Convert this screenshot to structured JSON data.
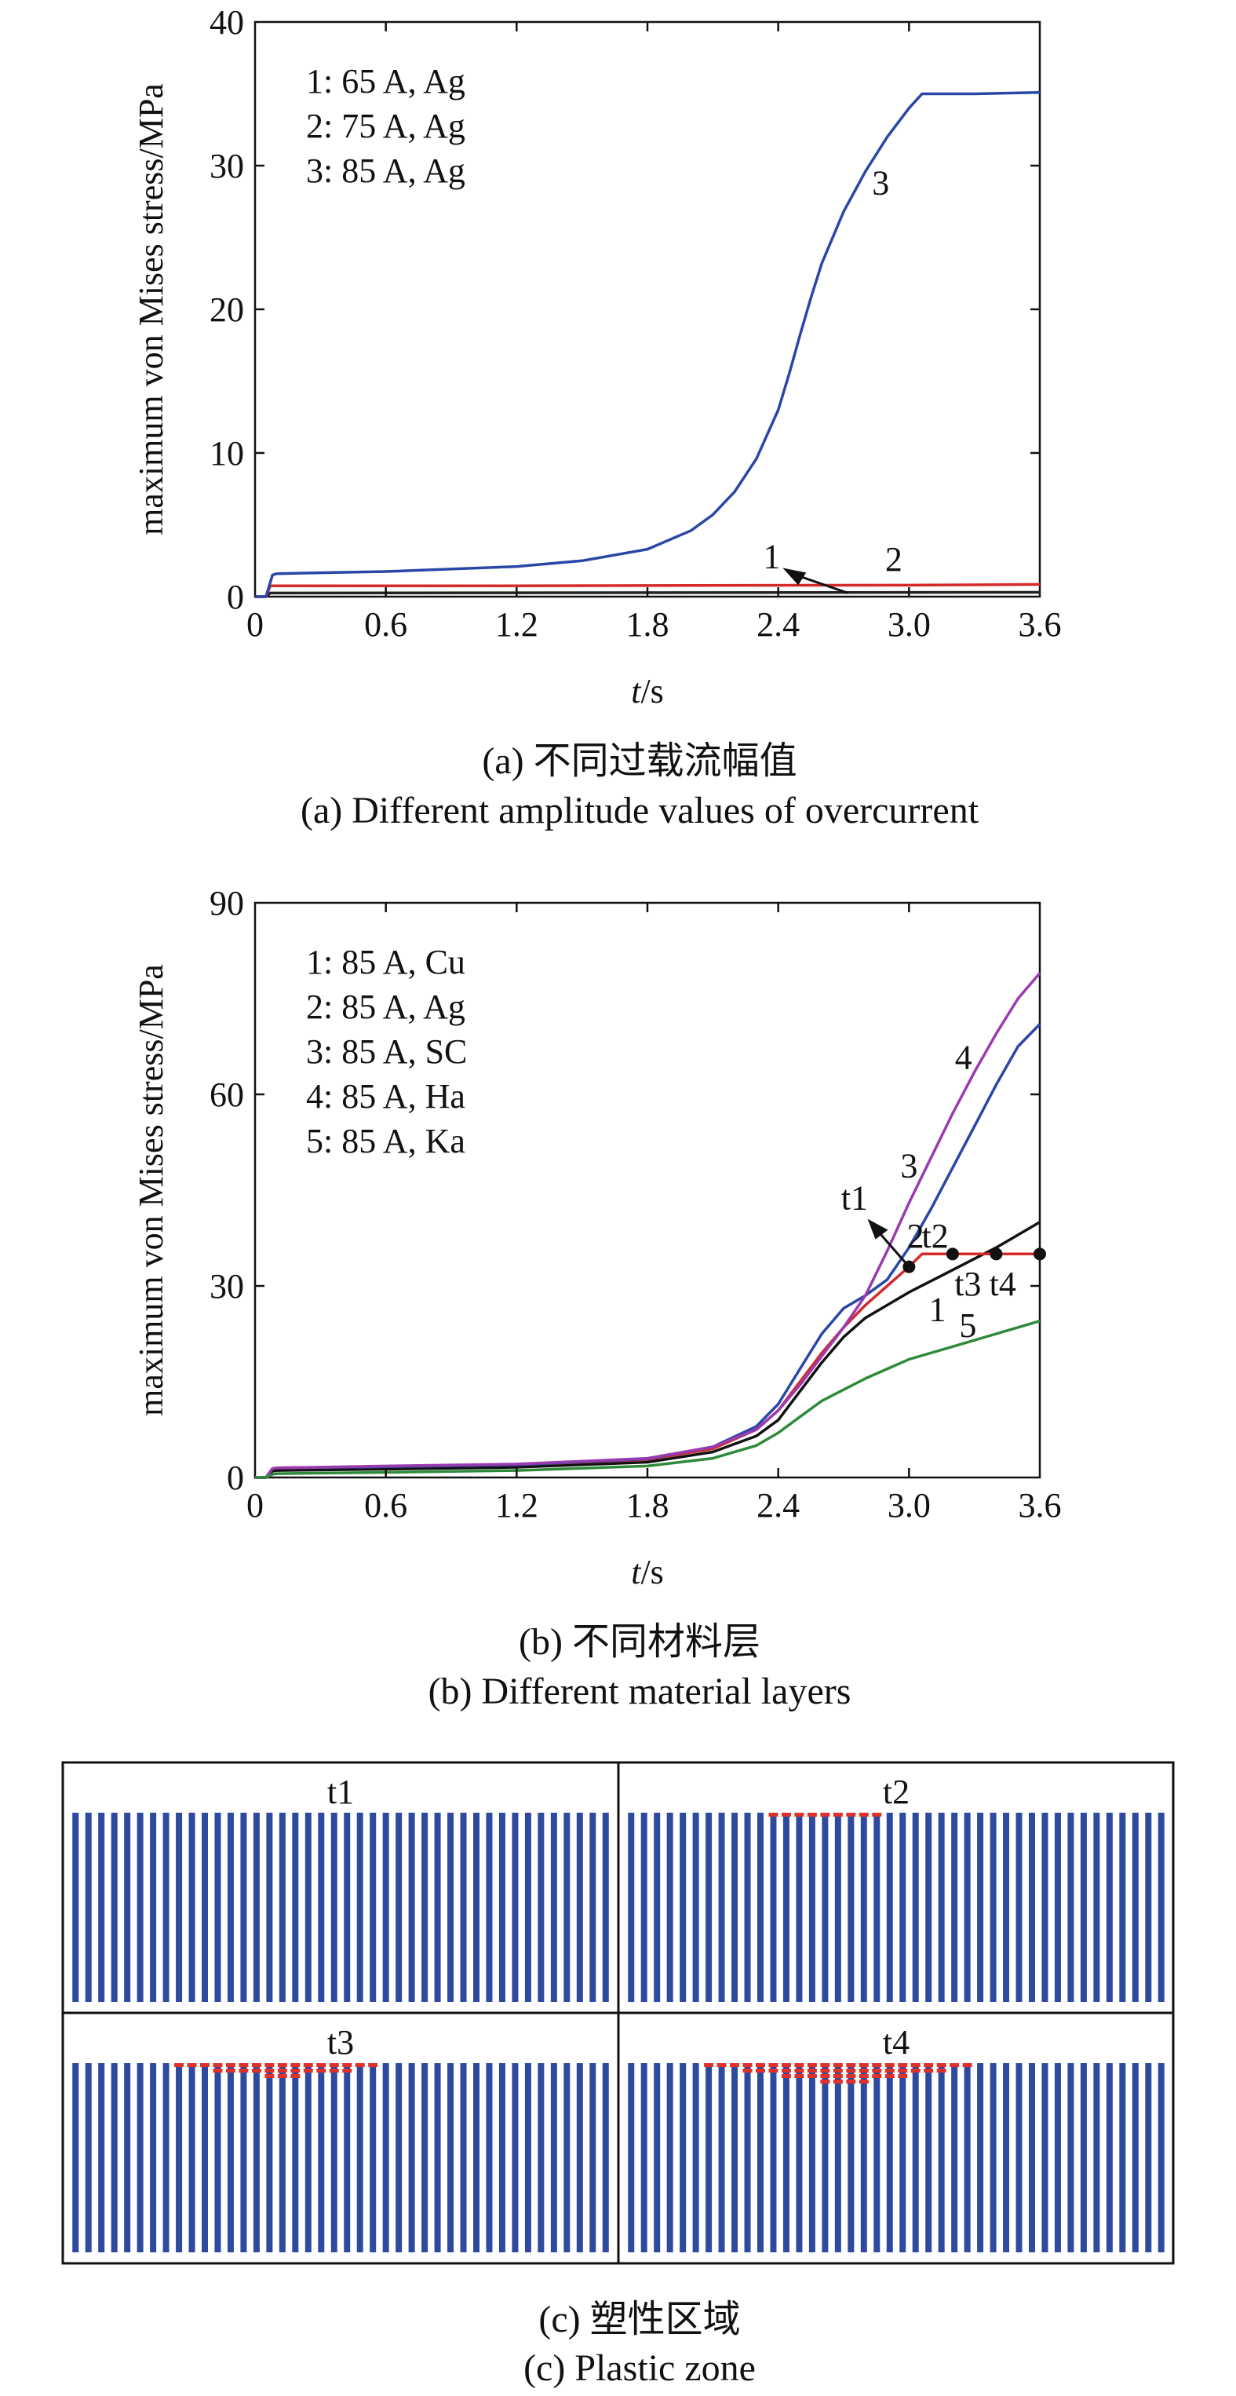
{
  "chart_data": [
    {
      "type": "line",
      "panel": "a",
      "caption_cn": "(a) 不同过载流幅值",
      "caption_en": "(a) Different amplitude values of overcurrent",
      "xlabel_italic": "t",
      "xlabel_unit": "/s",
      "ylabel": "maximum von Mises stress/MPa",
      "xlim": [
        0,
        3.6
      ],
      "ylim": [
        0,
        40
      ],
      "xticks": [
        "0",
        "0.6",
        "1.2",
        "1.8",
        "2.4",
        "3.0",
        "3.6"
      ],
      "yticks": [
        "0",
        "10",
        "20",
        "30",
        "40"
      ],
      "legend": [
        "1: 65 A, Ag",
        "2: 75 A, Ag",
        "3: 85 A, Ag"
      ],
      "legend_position": "top-left",
      "series": [
        {
          "label": "1",
          "color": "#222222",
          "x": [
            0,
            0.05,
            0.07,
            0.1,
            3.6
          ],
          "y": [
            0,
            0,
            0.25,
            0.25,
            0.3
          ]
        },
        {
          "label": "2",
          "color": "#d42a2a",
          "x": [
            0,
            0.05,
            0.07,
            0.1,
            1.0,
            2.0,
            3.0,
            3.6
          ],
          "y": [
            0,
            0,
            0.75,
            0.75,
            0.75,
            0.78,
            0.8,
            0.85
          ]
        },
        {
          "label": "3",
          "color": "#2a47a8",
          "x": [
            0,
            0.05,
            0.08,
            0.1,
            0.6,
            1.2,
            1.5,
            1.8,
            2.0,
            2.1,
            2.2,
            2.3,
            2.4,
            2.45,
            2.5,
            2.55,
            2.6,
            2.7,
            2.8,
            2.9,
            3.0,
            3.06,
            3.1,
            3.3,
            3.6
          ],
          "y": [
            0,
            0,
            1.5,
            1.6,
            1.75,
            2.1,
            2.5,
            3.3,
            4.6,
            5.7,
            7.3,
            9.6,
            13.0,
            15.5,
            18.2,
            20.8,
            23.2,
            26.8,
            29.6,
            32.0,
            34.0,
            35.0,
            35.0,
            35.0,
            35.1
          ]
        }
      ],
      "annotations": [
        {
          "text": "3",
          "x": 2.87,
          "y": 28.0
        },
        {
          "text": "1",
          "x": 2.37,
          "y": 2.0
        },
        {
          "text": "2",
          "x": 2.93,
          "y": 1.8
        }
      ]
    },
    {
      "type": "line",
      "panel": "b",
      "caption_cn": "(b) 不同材料层",
      "caption_en": "(b) Different material layers",
      "xlabel_italic": "t",
      "xlabel_unit": "/s",
      "ylabel": "maximum von Mises stress/MPa",
      "xlim": [
        0,
        3.6
      ],
      "ylim": [
        0,
        90
      ],
      "xticks": [
        "0",
        "0.6",
        "1.2",
        "1.8",
        "2.4",
        "3.0",
        "3.6"
      ],
      "yticks": [
        "0",
        "30",
        "60",
        "90"
      ],
      "legend": [
        "1: 85 A, Cu",
        "2: 85 A, Ag",
        "3: 85 A, SC",
        "4: 85 A, Ha",
        "5: 85 A, Ka"
      ],
      "legend_position": "top-left",
      "series": [
        {
          "label": "1",
          "color": "#111111",
          "x": [
            0,
            0.05,
            0.08,
            0.1,
            0.6,
            1.2,
            1.8,
            2.1,
            2.3,
            2.4,
            2.5,
            2.6,
            2.7,
            2.8,
            3.0,
            3.2,
            3.4,
            3.6
          ],
          "y": [
            0,
            0,
            1.0,
            1.1,
            1.3,
            1.6,
            2.4,
            4.0,
            6.5,
            9.0,
            13.5,
            18.0,
            22.0,
            25.0,
            29.0,
            32.5,
            36.0,
            40.0
          ]
        },
        {
          "label": "2",
          "color": "#d42a2a",
          "x": [
            0,
            0.05,
            0.08,
            0.1,
            0.6,
            1.2,
            1.8,
            2.1,
            2.3,
            2.4,
            2.5,
            2.6,
            2.7,
            2.8,
            2.9,
            3.0,
            3.06,
            3.1,
            3.6
          ],
          "y": [
            0,
            0,
            1.4,
            1.5,
            1.7,
            2.0,
            2.8,
            4.5,
            7.5,
            10.5,
            15.0,
            19.5,
            23.5,
            27.0,
            30.0,
            33.0,
            35.0,
            35.0,
            35.0
          ]
        },
        {
          "label": "3",
          "color": "#2a47a8",
          "x": [
            0,
            0.05,
            0.08,
            0.1,
            0.6,
            1.2,
            1.8,
            2.1,
            2.3,
            2.4,
            2.5,
            2.6,
            2.7,
            2.8,
            2.9,
            3.0,
            3.1,
            3.2,
            3.3,
            3.4,
            3.5,
            3.6
          ],
          "y": [
            0,
            0,
            1.4,
            1.5,
            1.7,
            2.0,
            2.9,
            4.8,
            8.0,
            11.5,
            17.0,
            22.5,
            26.5,
            28.5,
            31.0,
            36.0,
            42.0,
            48.5,
            55.0,
            61.5,
            67.5,
            71.0
          ]
        },
        {
          "label": "4",
          "color": "#9b3bb0",
          "x": [
            0,
            0.05,
            0.08,
            0.1,
            0.6,
            1.2,
            1.8,
            2.1,
            2.3,
            2.4,
            2.5,
            2.6,
            2.7,
            2.8,
            2.9,
            3.0,
            3.1,
            3.2,
            3.3,
            3.4,
            3.5,
            3.6
          ],
          "y": [
            0,
            0,
            1.4,
            1.5,
            1.8,
            2.1,
            3.0,
            4.8,
            7.5,
            10.5,
            14.5,
            19.0,
            23.5,
            28.5,
            35.5,
            43.0,
            50.0,
            57.0,
            63.5,
            69.5,
            75.0,
            79.0
          ]
        },
        {
          "label": "5",
          "color": "#2e8a3a",
          "x": [
            0,
            0.05,
            0.08,
            0.1,
            0.6,
            1.2,
            1.8,
            2.1,
            2.3,
            2.4,
            2.5,
            2.6,
            2.8,
            3.0,
            3.2,
            3.4,
            3.6
          ],
          "y": [
            0,
            0,
            0.5,
            0.6,
            0.8,
            1.1,
            1.8,
            3.0,
            5.0,
            7.0,
            9.5,
            12.0,
            15.5,
            18.5,
            20.5,
            22.5,
            24.5
          ]
        }
      ],
      "markers": [
        {
          "label": "t1",
          "x": 3.0,
          "y": 33.0
        },
        {
          "label": "t2",
          "x": 3.2,
          "y": 35.0
        },
        {
          "label": "t3",
          "x": 3.4,
          "y": 35.0
        },
        {
          "label": "t4",
          "x": 3.6,
          "y": 35.0
        }
      ],
      "annotations": [
        {
          "text": "4",
          "x": 3.25,
          "y": 64.0
        },
        {
          "text": "3",
          "x": 3.0,
          "y": 47.0
        },
        {
          "text": "t1",
          "x": 2.75,
          "y": 42.0
        },
        {
          "text": "2",
          "x": 3.03,
          "y": 36.0
        },
        {
          "text": "t2",
          "x": 3.12,
          "y": 36.0
        },
        {
          "text": "t3",
          "x": 3.27,
          "y": 28.5
        },
        {
          "text": "t4",
          "x": 3.43,
          "y": 28.5
        },
        {
          "text": "1",
          "x": 3.13,
          "y": 24.5
        },
        {
          "text": "5",
          "x": 3.27,
          "y": 22.0
        }
      ]
    }
  ],
  "plastic_zone": {
    "caption_cn": "(c) 塑性区域",
    "caption_en": "(c) Plastic zone",
    "panels": [
      {
        "label": "t1",
        "red_bars": 0,
        "red_depth": 0
      },
      {
        "label": "t2",
        "red_bars": 9,
        "red_depth": 1
      },
      {
        "label": "t3",
        "red_bars": 16,
        "red_depth": 3
      },
      {
        "label": "t4",
        "red_bars": 21,
        "red_depth": 4
      }
    ],
    "bar_count": 42,
    "bar_color": "#2e4a9e",
    "plastic_color": "#e0302a"
  }
}
